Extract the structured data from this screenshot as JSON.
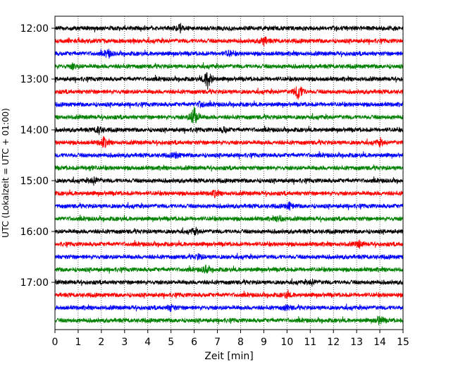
{
  "chart_data": {
    "type": "line",
    "title": "",
    "xlabel": "Zeit  [min]",
    "ylabel": "UTC (Lokalzeit = UTC + 01:00)",
    "xlim": [
      0,
      15
    ],
    "x_ticks": [
      "0",
      "1",
      "2",
      "3",
      "4",
      "5",
      "6",
      "7",
      "8",
      "9",
      "10",
      "11",
      "12",
      "13",
      "14",
      "15"
    ],
    "y_ticks": [
      "12:00",
      "13:00",
      "14:00",
      "15:00",
      "16:00",
      "17:00"
    ],
    "grid": "vertical dotted at each minute",
    "trace_interval_min": 15,
    "trace_colors": [
      "#000000",
      "#ff0000",
      "#0000ff",
      "#008000"
    ],
    "traces": [
      {
        "start": "12:00",
        "color": "#000000",
        "events": [
          {
            "t": 5.4,
            "amp": 0.5
          }
        ]
      },
      {
        "start": "12:15",
        "color": "#ff0000",
        "events": [
          {
            "t": 9.0,
            "amp": 0.7
          }
        ]
      },
      {
        "start": "12:30",
        "color": "#0000ff",
        "events": [
          {
            "t": 2.3,
            "amp": 0.6
          },
          {
            "t": 7.5,
            "amp": 0.5
          }
        ]
      },
      {
        "start": "12:45",
        "color": "#008000",
        "events": [
          {
            "t": 0.8,
            "amp": 0.4
          }
        ]
      },
      {
        "start": "13:00",
        "color": "#000000",
        "events": [
          {
            "t": 6.6,
            "amp": 1.8
          }
        ]
      },
      {
        "start": "13:15",
        "color": "#ff0000",
        "events": [
          {
            "t": 10.5,
            "amp": 1.5
          }
        ]
      },
      {
        "start": "13:30",
        "color": "#0000ff",
        "events": [
          {
            "t": 6.3,
            "amp": 0.5
          }
        ]
      },
      {
        "start": "13:45",
        "color": "#008000",
        "events": [
          {
            "t": 6.0,
            "amp": 1.9
          }
        ]
      },
      {
        "start": "14:00",
        "color": "#000000",
        "events": [
          {
            "t": 1.9,
            "amp": 0.7
          },
          {
            "t": 7.3,
            "amp": 0.4
          }
        ]
      },
      {
        "start": "14:15",
        "color": "#ff0000",
        "events": [
          {
            "t": 2.1,
            "amp": 0.8
          },
          {
            "t": 14.0,
            "amp": 0.5
          }
        ]
      },
      {
        "start": "14:30",
        "color": "#0000ff",
        "events": [
          {
            "t": 5.2,
            "amp": 0.4
          }
        ]
      },
      {
        "start": "14:45",
        "color": "#008000",
        "events": [
          {
            "t": 1.5,
            "amp": 0.3
          }
        ]
      },
      {
        "start": "15:00",
        "color": "#000000",
        "events": [
          {
            "t": 1.7,
            "amp": 0.6
          }
        ]
      },
      {
        "start": "15:15",
        "color": "#ff0000",
        "events": [
          {
            "t": 6.9,
            "amp": 0.4
          }
        ]
      },
      {
        "start": "15:30",
        "color": "#0000ff",
        "events": [
          {
            "t": 10.1,
            "amp": 0.5
          }
        ]
      },
      {
        "start": "15:45",
        "color": "#008000",
        "events": [
          {
            "t": 9.7,
            "amp": 0.5
          }
        ]
      },
      {
        "start": "16:00",
        "color": "#000000",
        "events": [
          {
            "t": 6.0,
            "amp": 0.5
          }
        ]
      },
      {
        "start": "16:15",
        "color": "#ff0000",
        "events": [
          {
            "t": 13.1,
            "amp": 0.5
          }
        ]
      },
      {
        "start": "16:30",
        "color": "#0000ff",
        "events": [
          {
            "t": 6.2,
            "amp": 0.4
          }
        ]
      },
      {
        "start": "16:45",
        "color": "#008000",
        "events": [
          {
            "t": 6.5,
            "amp": 0.6
          }
        ]
      },
      {
        "start": "17:00",
        "color": "#000000",
        "events": [
          {
            "t": 11.1,
            "amp": 0.4
          }
        ]
      },
      {
        "start": "17:15",
        "color": "#ff0000",
        "events": [
          {
            "t": 10.0,
            "amp": 0.4
          }
        ]
      },
      {
        "start": "17:30",
        "color": "#0000ff",
        "events": [
          {
            "t": 5.0,
            "amp": 0.5
          },
          {
            "t": 10.0,
            "amp": 0.4
          }
        ]
      },
      {
        "start": "17:45",
        "color": "#008000",
        "events": [
          {
            "t": 14.0,
            "amp": 0.7
          }
        ]
      }
    ]
  }
}
